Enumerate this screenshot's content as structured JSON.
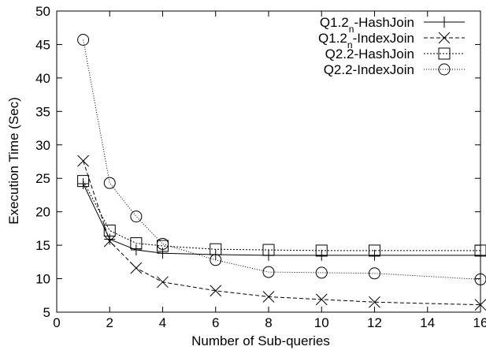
{
  "chart_data": {
    "type": "line",
    "title": "",
    "xlabel": "Number of Sub-queries",
    "ylabel": "Execution Time (Sec)",
    "xlim": [
      0,
      16
    ],
    "ylim": [
      5,
      50
    ],
    "x_ticks": [
      0,
      2,
      4,
      6,
      8,
      10,
      12,
      14,
      16
    ],
    "y_ticks": [
      5,
      10,
      15,
      20,
      25,
      30,
      35,
      40,
      45,
      50
    ],
    "grid": false,
    "legend_position": "top-right",
    "series": [
      {
        "name_main": "Q1.2",
        "name_sub": "n",
        "name_suffix": "-HashJoin",
        "marker": "plus",
        "dash": "solid",
        "x": [
          1,
          2,
          3,
          4,
          6,
          8,
          10,
          12,
          16
        ],
        "y": [
          24.2,
          15.9,
          14.3,
          13.8,
          13.6,
          13.5,
          13.5,
          13.5,
          13.5
        ]
      },
      {
        "name_main": "Q1.2",
        "name_sub": "n",
        "name_suffix": "-IndexJoin",
        "marker": "cross",
        "dash": "dashed",
        "x": [
          1,
          2,
          3,
          4,
          6,
          8,
          10,
          12,
          16
        ],
        "y": [
          27.6,
          15.6,
          11.6,
          9.5,
          8.2,
          7.3,
          6.9,
          6.5,
          6.1
        ]
      },
      {
        "name_main": "Q2.2-HashJoin",
        "name_sub": "",
        "name_suffix": "",
        "marker": "square",
        "dash": "dotted",
        "x": [
          1,
          2,
          3,
          4,
          6,
          8,
          10,
          12,
          16
        ],
        "y": [
          24.6,
          17.2,
          15.3,
          14.9,
          14.4,
          14.3,
          14.2,
          14.2,
          14.2
        ]
      },
      {
        "name_main": "Q2.2-IndexJoin",
        "name_sub": "",
        "name_suffix": "",
        "marker": "circle",
        "dash": "fine-dotted",
        "x": [
          1,
          2,
          3,
          4,
          6,
          8,
          10,
          12,
          16
        ],
        "y": [
          45.7,
          24.3,
          19.3,
          15.2,
          12.8,
          11.0,
          10.9,
          10.8,
          9.9
        ]
      }
    ]
  }
}
